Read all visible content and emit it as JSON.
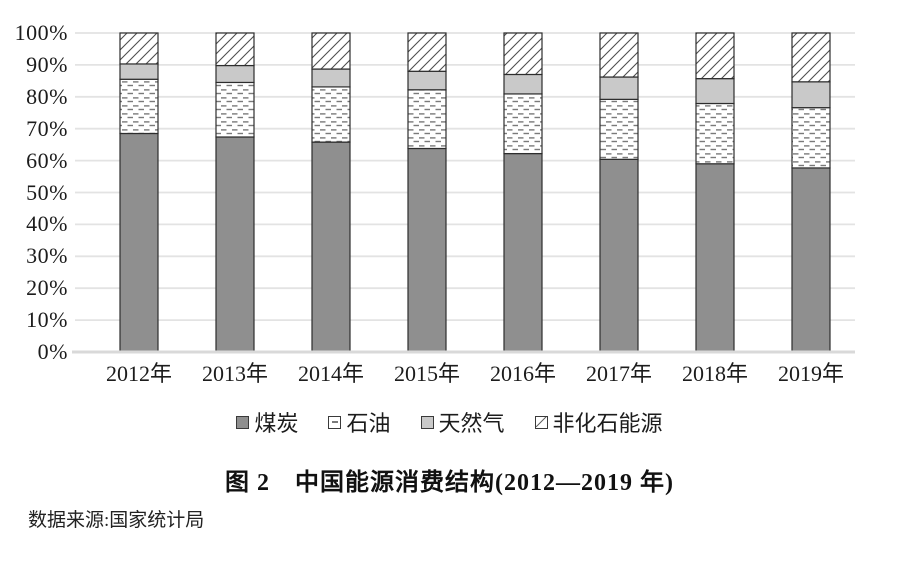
{
  "chart_data": {
    "type": "bar",
    "stacked": true,
    "orientation": "vertical",
    "title": "图 2　中国能源消费结构(2012—2019 年)",
    "source": "数据来源:国家统计局",
    "categories": [
      "2012年",
      "2013年",
      "2014年",
      "2015年",
      "2016年",
      "2017年",
      "2018年",
      "2019年"
    ],
    "series": [
      {
        "name": "煤炭",
        "style": "solid",
        "color": "#8f8f8f",
        "values": [
          68.5,
          67.4,
          65.8,
          63.8,
          62.2,
          60.4,
          59.0,
          57.7
        ]
      },
      {
        "name": "石油",
        "style": "dash",
        "color": "#ffffff",
        "values": [
          17.0,
          17.1,
          17.3,
          18.4,
          18.7,
          18.8,
          18.9,
          18.9
        ]
      },
      {
        "name": "天然气",
        "style": "solid",
        "color": "#c9c9c9",
        "values": [
          4.8,
          5.3,
          5.6,
          5.8,
          6.1,
          7.0,
          7.8,
          8.1
        ]
      },
      {
        "name": "非化石能源",
        "style": "hatch",
        "color": "#ffffff",
        "values": [
          9.7,
          10.2,
          11.3,
          12.0,
          13.0,
          13.8,
          14.3,
          15.3
        ]
      }
    ],
    "unit": "%",
    "ylim": [
      0,
      100
    ],
    "y_ticks": [
      "100%",
      "90%",
      "80%",
      "70%",
      "60%",
      "50%",
      "40%",
      "30%",
      "20%",
      "10%",
      "0%"
    ],
    "grid": true,
    "legend_position": "bottom",
    "colors": {
      "bar_border": "#2d2d2d",
      "pattern_stroke": "#6e6e6e",
      "gridline": "#e3e3e3",
      "baseline": "#d9d9d9",
      "text": "#1c1c1c"
    }
  }
}
